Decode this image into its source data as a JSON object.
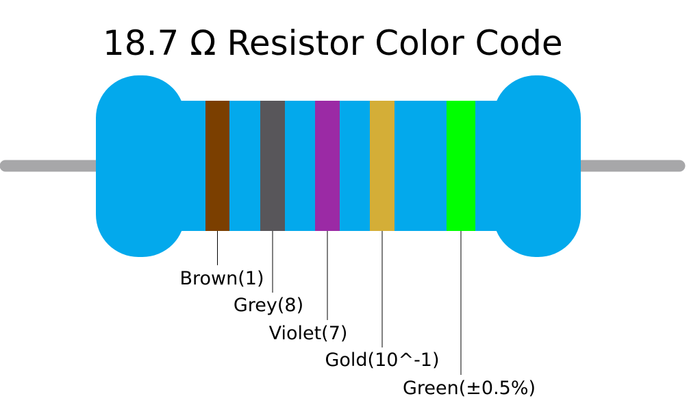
{
  "title": "18.7 Ω Resistor Color Code",
  "bands": [
    {
      "label": "Brown(1)",
      "color": "#7b3f00"
    },
    {
      "label": "Grey(8)",
      "color": "#58565a"
    },
    {
      "label": "Violet(7)",
      "color": "#9b2aa5"
    },
    {
      "label": "Gold(10^-1)",
      "color": "#d4ae37"
    },
    {
      "label": "Green(±0.5%)",
      "color": "#00ff00"
    }
  ]
}
